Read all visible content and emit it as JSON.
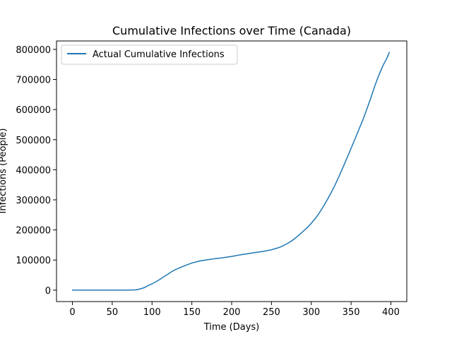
{
  "chart_data": {
    "type": "line",
    "title": "Cumulative Infections over Time (Canada)",
    "xlabel": "Time (Days)",
    "ylabel": "Infections (People)",
    "xlim": [
      -20,
      420
    ],
    "ylim": [
      -38000,
      828000
    ],
    "xticks": [
      0,
      50,
      100,
      150,
      200,
      250,
      300,
      350,
      400
    ],
    "yticks": [
      0,
      100000,
      200000,
      300000,
      400000,
      500000,
      600000,
      700000,
      800000
    ],
    "grid": false,
    "legend_position": "top-left",
    "series": [
      {
        "name": "Actual Cumulative Infections",
        "color": "#1f77b4",
        "x": [
          0,
          20,
          40,
          60,
          70,
          80,
          85,
          90,
          95,
          100,
          105,
          110,
          115,
          120,
          125,
          130,
          140,
          150,
          160,
          170,
          180,
          190,
          200,
          210,
          220,
          230,
          240,
          250,
          255,
          260,
          265,
          270,
          275,
          280,
          285,
          290,
          295,
          300,
          305,
          310,
          315,
          320,
          325,
          330,
          335,
          340,
          345,
          350,
          355,
          360,
          365,
          370,
          375,
          380,
          385,
          390,
          395,
          398
        ],
        "y": [
          0,
          0,
          0,
          0,
          0,
          1000,
          4000,
          8000,
          15000,
          21000,
          28000,
          36000,
          45000,
          53000,
          62000,
          69000,
          80000,
          90000,
          97000,
          101000,
          105000,
          108000,
          112000,
          117000,
          121000,
          125000,
          129000,
          134000,
          138000,
          142000,
          148000,
          155000,
          163000,
          173000,
          184000,
          196000,
          208000,
          222000,
          238000,
          256000,
          277000,
          300000,
          324000,
          350000,
          379000,
          409000,
          440000,
          471000,
          503000,
          535000,
          567000,
          603000,
          640000,
          680000,
          715000,
          746000,
          771000,
          790000
        ]
      }
    ]
  }
}
